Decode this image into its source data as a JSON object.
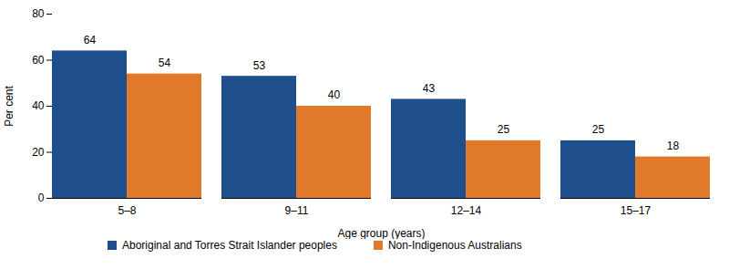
{
  "chart_data": {
    "type": "bar",
    "categories": [
      "5–8",
      "9–11",
      "12–14",
      "15–17"
    ],
    "series": [
      {
        "name": "Aboriginal and Torres Strait Islander peoples",
        "color": "#1f4e8c",
        "values": [
          64,
          53,
          43,
          25
        ]
      },
      {
        "name": "Non-Indigenous Australians",
        "color": "#e07a2a",
        "values": [
          54,
          40,
          25,
          18
        ]
      }
    ],
    "x_label": "Age group (years)",
    "y_label": "Per cent",
    "ylim": [
      0,
      80
    ],
    "yticks": [
      0,
      20,
      40,
      60,
      80
    ],
    "grid": false,
    "data_labels": true,
    "legend": "bottom"
  }
}
